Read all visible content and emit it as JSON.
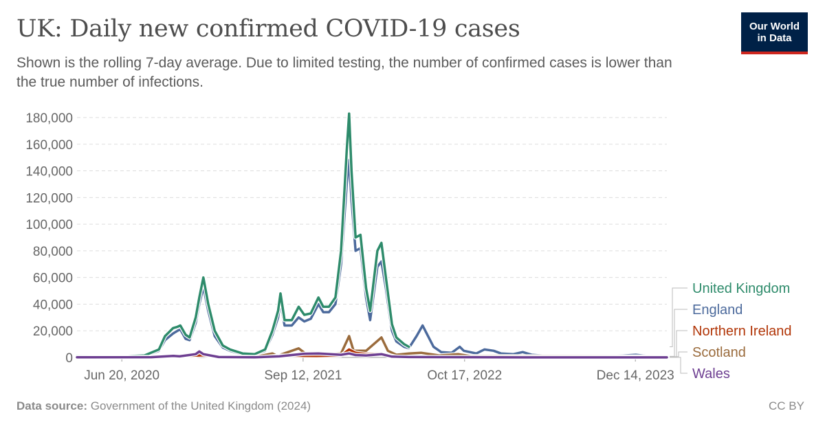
{
  "title": "UK: Daily new confirmed COVID-19 cases",
  "subtitle": "Shown is the rolling 7-day average. Due to limited testing, the number of confirmed cases is lower than the true number of infections.",
  "logo": {
    "line1": "Our World",
    "line2": "in Data",
    "bg_color": "#002147",
    "accent_color": "#ce261e"
  },
  "footer": {
    "source_label": "Data source:",
    "source_text": "Government of the United Kingdom (2024)",
    "license": "CC BY"
  },
  "chart_data": {
    "type": "line",
    "x_type": "date",
    "x_ticks": [
      "2020-06-20",
      "2021-09-12",
      "2022-10-17",
      "2023-12-14"
    ],
    "x_tick_labels": [
      "Jun 20, 2020",
      "Sep 12, 2021",
      "Oct 17, 2022",
      "Dec 14, 2023"
    ],
    "xlim": [
      "2020-03-01",
      "2024-03-01"
    ],
    "ylim": [
      0,
      180000
    ],
    "y_ticks": [
      0,
      20000,
      40000,
      60000,
      80000,
      100000,
      120000,
      140000,
      160000,
      180000
    ],
    "y_tick_labels": [
      "0",
      "20,000",
      "40,000",
      "60,000",
      "80,000",
      "100,000",
      "120,000",
      "140,000",
      "160,000",
      "180,000"
    ],
    "grid": true,
    "legend_position": "right",
    "series": [
      {
        "name": "United Kingdom",
        "color": "#2e8b6b",
        "points": [
          [
            "2020-03-01",
            800
          ],
          [
            "2020-05-01",
            500
          ],
          [
            "2020-07-01",
            800
          ],
          [
            "2020-08-15",
            1500
          ],
          [
            "2020-09-20",
            6000
          ],
          [
            "2020-10-05",
            16000
          ],
          [
            "2020-10-25",
            22000
          ],
          [
            "2020-11-05",
            23000
          ],
          [
            "2020-11-12",
            24000
          ],
          [
            "2020-11-25",
            17000
          ],
          [
            "2020-12-05",
            15000
          ],
          [
            "2020-12-20",
            30000
          ],
          [
            "2020-12-29",
            45000
          ],
          [
            "2021-01-08",
            60000
          ],
          [
            "2021-01-20",
            40000
          ],
          [
            "2021-02-05",
            20000
          ],
          [
            "2021-02-25",
            9000
          ],
          [
            "2021-03-15",
            6000
          ],
          [
            "2021-04-15",
            3000
          ],
          [
            "2021-05-15",
            2500
          ],
          [
            "2021-06-10",
            6000
          ],
          [
            "2021-06-28",
            20000
          ],
          [
            "2021-07-12",
            35000
          ],
          [
            "2021-07-18",
            48000
          ],
          [
            "2021-07-28",
            28000
          ],
          [
            "2021-08-15",
            28000
          ],
          [
            "2021-09-01",
            38000
          ],
          [
            "2021-09-15",
            32000
          ],
          [
            "2021-10-01",
            33000
          ],
          [
            "2021-10-20",
            45000
          ],
          [
            "2021-11-01",
            38000
          ],
          [
            "2021-11-15",
            38000
          ],
          [
            "2021-12-01",
            45000
          ],
          [
            "2021-12-15",
            80000
          ],
          [
            "2021-12-29",
            155000
          ],
          [
            "2022-01-04",
            183000
          ],
          [
            "2022-01-10",
            140000
          ],
          [
            "2022-01-20",
            90000
          ],
          [
            "2022-02-01",
            92000
          ],
          [
            "2022-02-15",
            52000
          ],
          [
            "2022-02-25",
            35000
          ],
          [
            "2022-03-15",
            80000
          ],
          [
            "2022-03-25",
            86000
          ],
          [
            "2022-04-05",
            60000
          ],
          [
            "2022-04-20",
            25000
          ],
          [
            "2022-05-01",
            15000
          ],
          [
            "2022-05-20",
            10000
          ],
          [
            "2022-06-01",
            8000
          ]
        ]
      },
      {
        "name": "England",
        "color": "#4c6a9c",
        "points": [
          [
            "2020-03-01",
            700
          ],
          [
            "2020-05-01",
            400
          ],
          [
            "2020-07-01",
            700
          ],
          [
            "2020-08-15",
            1200
          ],
          [
            "2020-09-20",
            5000
          ],
          [
            "2020-10-05",
            13000
          ],
          [
            "2020-10-25",
            18000
          ],
          [
            "2020-11-05",
            20000
          ],
          [
            "2020-11-12",
            21000
          ],
          [
            "2020-11-25",
            14000
          ],
          [
            "2020-12-05",
            13000
          ],
          [
            "2020-12-20",
            26000
          ],
          [
            "2020-12-29",
            40000
          ],
          [
            "2021-01-08",
            53000
          ],
          [
            "2021-01-20",
            35000
          ],
          [
            "2021-02-05",
            16000
          ],
          [
            "2021-02-25",
            7500
          ],
          [
            "2021-03-15",
            5000
          ],
          [
            "2021-04-15",
            2400
          ],
          [
            "2021-05-15",
            2000
          ],
          [
            "2021-06-10",
            5000
          ],
          [
            "2021-06-28",
            17000
          ],
          [
            "2021-07-12",
            30000
          ],
          [
            "2021-07-18",
            42000
          ],
          [
            "2021-07-28",
            24000
          ],
          [
            "2021-08-15",
            24000
          ],
          [
            "2021-09-01",
            30000
          ],
          [
            "2021-09-15",
            27000
          ],
          [
            "2021-10-01",
            29000
          ],
          [
            "2021-10-20",
            40000
          ],
          [
            "2021-11-01",
            34000
          ],
          [
            "2021-11-15",
            34000
          ],
          [
            "2021-12-01",
            40000
          ],
          [
            "2021-12-15",
            70000
          ],
          [
            "2021-12-29",
            130000
          ],
          [
            "2022-01-04",
            148000
          ],
          [
            "2022-01-10",
            118000
          ],
          [
            "2022-01-20",
            80000
          ],
          [
            "2022-02-01",
            82000
          ],
          [
            "2022-02-15",
            45000
          ],
          [
            "2022-02-25",
            28000
          ],
          [
            "2022-03-15",
            68000
          ],
          [
            "2022-03-25",
            72000
          ],
          [
            "2022-04-05",
            52000
          ],
          [
            "2022-04-20",
            20000
          ],
          [
            "2022-05-01",
            12000
          ],
          [
            "2022-05-20",
            8000
          ],
          [
            "2022-06-01",
            7000
          ],
          [
            "2022-06-20",
            16000
          ],
          [
            "2022-07-05",
            24000
          ],
          [
            "2022-07-15",
            18000
          ],
          [
            "2022-08-01",
            8000
          ],
          [
            "2022-08-20",
            4000
          ],
          [
            "2022-09-15",
            3500
          ],
          [
            "2022-10-05",
            8000
          ],
          [
            "2022-10-15",
            5000
          ],
          [
            "2022-11-15",
            3000
          ],
          [
            "2022-12-05",
            6000
          ],
          [
            "2022-12-28",
            5000
          ],
          [
            "2023-01-15",
            3000
          ],
          [
            "2023-02-15",
            2500
          ],
          [
            "2023-03-10",
            4000
          ],
          [
            "2023-04-01",
            2000
          ],
          [
            "2023-06-01",
            600
          ],
          [
            "2023-09-01",
            500
          ],
          [
            "2023-10-15",
            900
          ],
          [
            "2023-12-15",
            2000
          ],
          [
            "2024-01-15",
            1000
          ],
          [
            "2024-03-01",
            800
          ]
        ]
      },
      {
        "name": "Northern Ireland",
        "color": "#b13507",
        "points": [
          [
            "2020-03-01",
            50
          ],
          [
            "2020-09-20",
            400
          ],
          [
            "2020-10-20",
            1000
          ],
          [
            "2020-12-29",
            1500
          ],
          [
            "2021-01-08",
            1600
          ],
          [
            "2021-02-15",
            300
          ],
          [
            "2021-06-01",
            100
          ],
          [
            "2021-07-15",
            1300
          ],
          [
            "2021-08-15",
            1400
          ],
          [
            "2021-09-15",
            1200
          ],
          [
            "2021-10-15",
            1100
          ],
          [
            "2021-12-15",
            1500
          ],
          [
            "2022-01-04",
            6000
          ],
          [
            "2022-01-20",
            3500
          ],
          [
            "2022-02-15",
            2500
          ],
          [
            "2022-03-25",
            3000
          ],
          [
            "2022-05-01",
            400
          ],
          [
            "2022-08-01",
            300
          ],
          [
            "2023-01-01",
            150
          ],
          [
            "2024-03-01",
            80
          ]
        ]
      },
      {
        "name": "Scotland",
        "color": "#9a6b3c",
        "points": [
          [
            "2020-03-01",
            100
          ],
          [
            "2020-09-01",
            300
          ],
          [
            "2020-10-10",
            1200
          ],
          [
            "2020-11-15",
            1100
          ],
          [
            "2020-12-15",
            1000
          ],
          [
            "2021-01-08",
            2200
          ],
          [
            "2021-02-15",
            800
          ],
          [
            "2021-05-15",
            300
          ],
          [
            "2021-06-28",
            3000
          ],
          [
            "2021-07-10",
            1200
          ],
          [
            "2021-09-01",
            6800
          ],
          [
            "2021-09-20",
            2500
          ],
          [
            "2021-10-20",
            2500
          ],
          [
            "2021-12-15",
            3000
          ],
          [
            "2022-01-04",
            16000
          ],
          [
            "2022-01-15",
            5000
          ],
          [
            "2022-02-15",
            5000
          ],
          [
            "2022-03-25",
            15000
          ],
          [
            "2022-04-10",
            5000
          ],
          [
            "2022-05-01",
            2000
          ],
          [
            "2022-06-01",
            3000
          ],
          [
            "2022-07-01",
            3500
          ],
          [
            "2022-08-15",
            1500
          ],
          [
            "2022-10-01",
            2500
          ],
          [
            "2022-11-01",
            1000
          ],
          [
            "2023-01-01",
            1000
          ],
          [
            "2024-03-01",
            600
          ]
        ]
      },
      {
        "name": "Wales",
        "color": "#6d3e91",
        "points": [
          [
            "2020-03-01",
            100
          ],
          [
            "2020-09-01",
            200
          ],
          [
            "2020-10-25",
            1200
          ],
          [
            "2020-11-10",
            800
          ],
          [
            "2020-12-20",
            2500
          ],
          [
            "2020-12-29",
            4500
          ],
          [
            "2021-01-08",
            2500
          ],
          [
            "2021-02-15",
            300
          ],
          [
            "2021-05-15",
            100
          ],
          [
            "2021-07-15",
            800
          ],
          [
            "2021-09-15",
            2800
          ],
          [
            "2021-10-20",
            3000
          ],
          [
            "2021-12-15",
            2000
          ],
          [
            "2022-01-04",
            3000
          ],
          [
            "2022-01-20",
            1800
          ],
          [
            "2022-02-15",
            1500
          ],
          [
            "2022-03-25",
            2500
          ],
          [
            "2022-04-20",
            600
          ],
          [
            "2022-06-01",
            300
          ],
          [
            "2023-01-01",
            100
          ],
          [
            "2024-03-01",
            50
          ]
        ]
      }
    ]
  }
}
